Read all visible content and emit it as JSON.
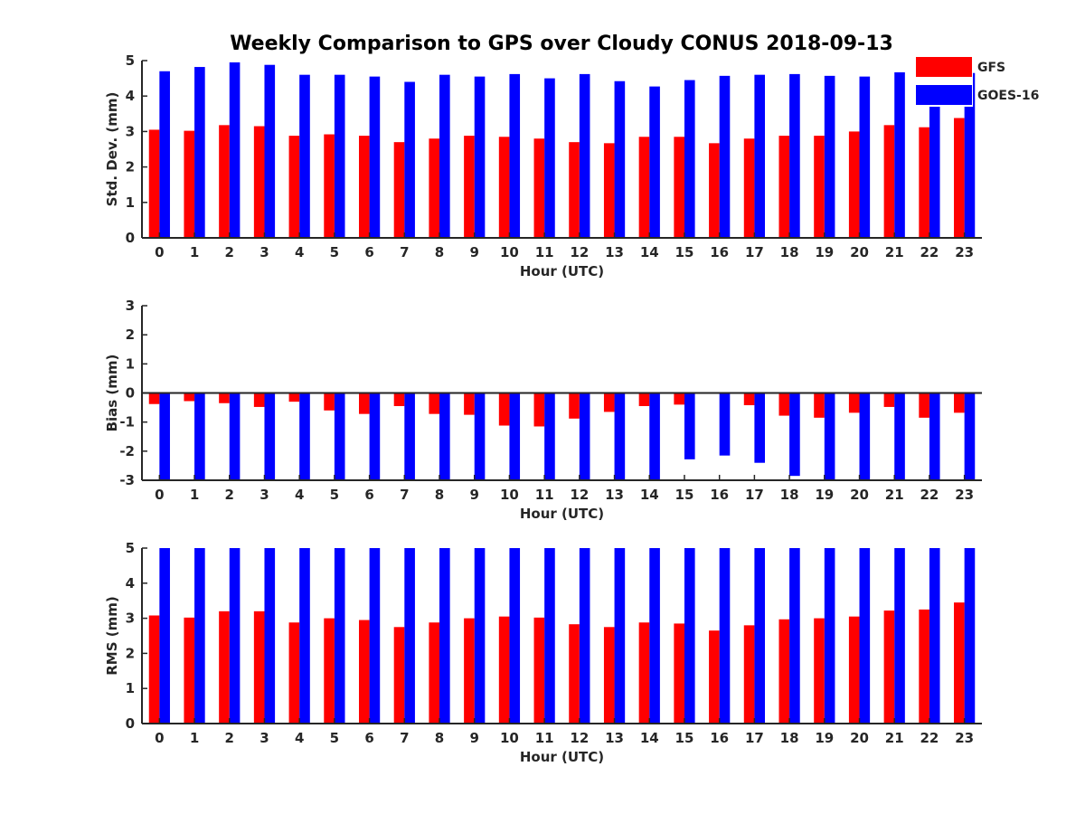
{
  "title": "Weekly Comparison to GPS over Cloudy CONUS 2018-09-13",
  "legend": [
    {
      "label": "GFS",
      "color": "#ff0000"
    },
    {
      "label": "GOES-16",
      "color": "#0000ff"
    }
  ],
  "chart_data": [
    {
      "type": "bar",
      "name": "std-dev",
      "xlabel": "Hour (UTC)",
      "ylabel": "Std. Dev. (mm)",
      "ylim": [
        0,
        5
      ],
      "yticks": [
        0,
        1,
        2,
        3,
        4,
        5
      ],
      "categories": [
        "0",
        "1",
        "2",
        "3",
        "4",
        "5",
        "6",
        "7",
        "8",
        "9",
        "10",
        "11",
        "12",
        "13",
        "14",
        "15",
        "16",
        "17",
        "18",
        "19",
        "20",
        "21",
        "22",
        "23"
      ],
      "series": [
        {
          "name": "GFS",
          "color": "#ff0000",
          "values": [
            3.05,
            3.02,
            3.18,
            3.15,
            2.88,
            2.92,
            2.88,
            2.7,
            2.8,
            2.88,
            2.85,
            2.8,
            2.7,
            2.67,
            2.85,
            2.85,
            2.67,
            2.8,
            2.88,
            2.88,
            3.0,
            3.18,
            3.12,
            3.38
          ]
        },
        {
          "name": "GOES-16",
          "color": "#0000ff",
          "values": [
            4.7,
            4.82,
            4.95,
            4.88,
            4.6,
            4.6,
            4.55,
            4.4,
            4.6,
            4.55,
            4.62,
            4.5,
            4.62,
            4.42,
            4.27,
            4.45,
            4.57,
            4.6,
            4.62,
            4.57,
            4.55,
            4.67,
            4.75,
            4.65
          ]
        }
      ]
    },
    {
      "type": "bar",
      "name": "bias",
      "xlabel": "Hour (UTC)",
      "ylabel": "Bias (mm)",
      "ylim": [
        -3,
        3
      ],
      "yticks": [
        -3,
        -2,
        -1,
        0,
        1,
        2,
        3
      ],
      "categories": [
        "0",
        "1",
        "2",
        "3",
        "4",
        "5",
        "6",
        "7",
        "8",
        "9",
        "10",
        "11",
        "12",
        "13",
        "14",
        "15",
        "16",
        "17",
        "18",
        "19",
        "20",
        "21",
        "22",
        "23"
      ],
      "series": [
        {
          "name": "GFS",
          "color": "#ff0000",
          "values": [
            -0.38,
            -0.28,
            -0.35,
            -0.48,
            -0.3,
            -0.6,
            -0.72,
            -0.45,
            -0.72,
            -0.75,
            -1.12,
            -1.15,
            -0.88,
            -0.65,
            -0.45,
            -0.4,
            -0.02,
            -0.42,
            -0.78,
            -0.85,
            -0.68,
            -0.48,
            -0.85,
            -0.68
          ]
        },
        {
          "name": "GOES-16",
          "color": "#0000ff",
          "values": [
            -3.0,
            -3.0,
            -3.0,
            -3.0,
            -3.0,
            -3.0,
            -3.0,
            -3.0,
            -3.0,
            -3.0,
            -3.0,
            -3.0,
            -3.0,
            -3.0,
            -3.0,
            -2.28,
            -2.15,
            -2.4,
            -2.85,
            -3.0,
            -3.0,
            -3.0,
            -3.0,
            -3.0
          ]
        }
      ]
    },
    {
      "type": "bar",
      "name": "rms",
      "xlabel": "Hour (UTC)",
      "ylabel": "RMS (mm)",
      "ylim": [
        0,
        5
      ],
      "yticks": [
        0,
        1,
        2,
        3,
        4,
        5
      ],
      "categories": [
        "0",
        "1",
        "2",
        "3",
        "4",
        "5",
        "6",
        "7",
        "8",
        "9",
        "10",
        "11",
        "12",
        "13",
        "14",
        "15",
        "16",
        "17",
        "18",
        "19",
        "20",
        "21",
        "22",
        "23"
      ],
      "series": [
        {
          "name": "GFS",
          "color": "#ff0000",
          "values": [
            3.08,
            3.02,
            3.2,
            3.2,
            2.88,
            3.0,
            2.95,
            2.75,
            2.88,
            3.0,
            3.05,
            3.02,
            2.83,
            2.75,
            2.88,
            2.85,
            2.65,
            2.8,
            2.97,
            3.0,
            3.05,
            3.22,
            3.25,
            3.45
          ]
        },
        {
          "name": "GOES-16",
          "color": "#0000ff",
          "values": [
            5,
            5,
            5,
            5,
            5,
            5,
            5,
            5,
            5,
            5,
            5,
            5,
            5,
            5,
            5,
            5,
            5,
            5,
            5,
            5,
            5,
            5,
            5,
            5
          ]
        }
      ]
    }
  ]
}
